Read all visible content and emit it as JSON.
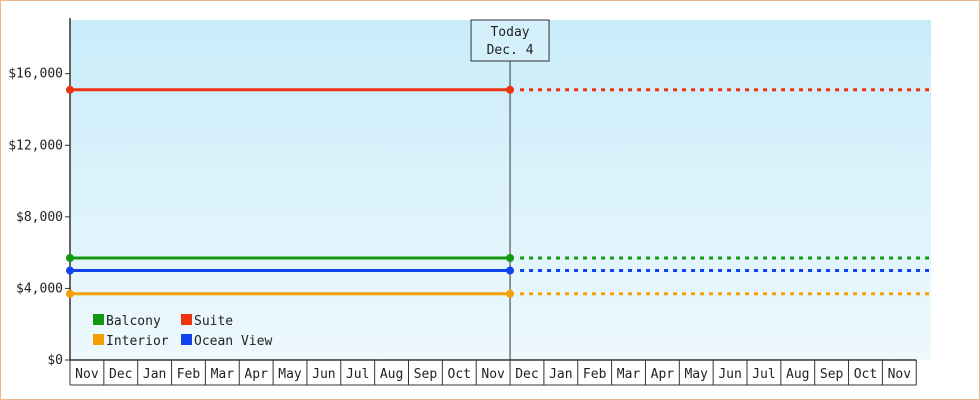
{
  "chart_data": {
    "type": "line",
    "ylim": [
      0,
      19000
    ],
    "y_ticks": [
      {
        "value": 0,
        "label": "$0"
      },
      {
        "value": 4000,
        "label": "$4,000"
      },
      {
        "value": 8000,
        "label": "$8,000"
      },
      {
        "value": 12000,
        "label": "$12,000"
      },
      {
        "value": 16000,
        "label": "$16,000"
      }
    ],
    "months": [
      "Nov",
      "Dec",
      "Jan",
      "Feb",
      "Mar",
      "Apr",
      "May",
      "Jun",
      "Jul",
      "Aug",
      "Sep",
      "Oct",
      "Nov",
      "Dec",
      "Jan",
      "Feb",
      "Mar",
      "Apr",
      "May",
      "Jun",
      "Jul",
      "Aug",
      "Sep",
      "Oct",
      "Nov"
    ],
    "today": {
      "title": "Today",
      "date": "Dec. 4",
      "month_index": 13
    },
    "series": [
      {
        "name": "Suite",
        "color": "#ee3311",
        "value": 15100
      },
      {
        "name": "Balcony",
        "color": "#119911",
        "value": 5700
      },
      {
        "name": "Ocean View",
        "color": "#1144ee",
        "value": 5000
      },
      {
        "name": "Interior",
        "color": "#f5a000",
        "value": 3700
      }
    ],
    "legend": [
      {
        "name": "Balcony",
        "color": "#119911"
      },
      {
        "name": "Suite",
        "color": "#ee3311"
      },
      {
        "name": "Interior",
        "color": "#f5a000"
      },
      {
        "name": "Ocean View",
        "color": "#1144ee"
      }
    ],
    "legend_position": "bottom-left",
    "grid": false,
    "background_gradient": [
      "#c9ecfa",
      "#eef9fd"
    ]
  }
}
